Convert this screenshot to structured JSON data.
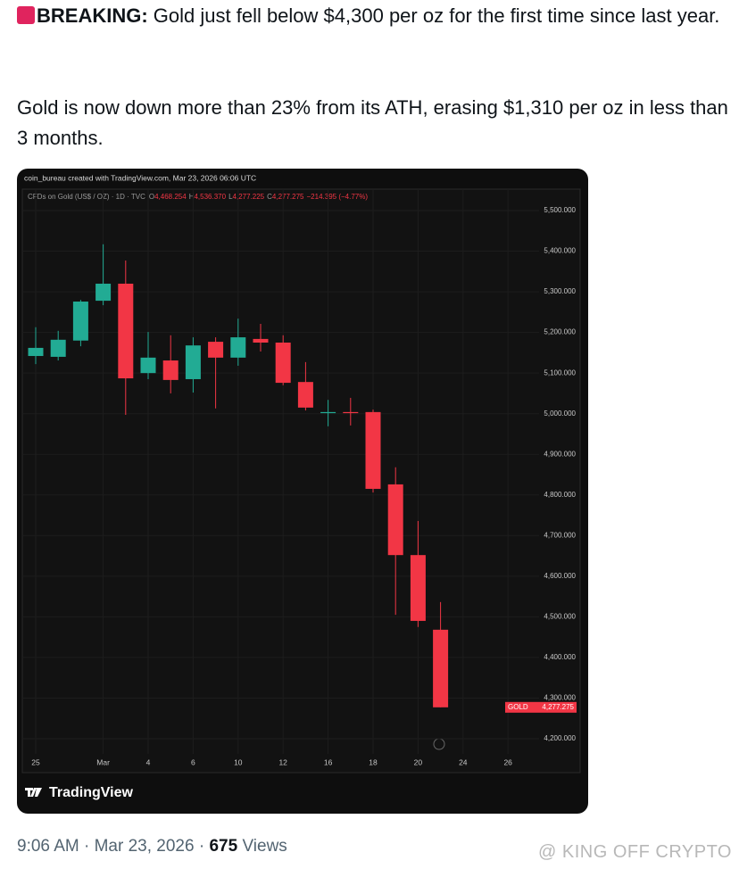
{
  "tweet": {
    "lead": "BREAKING:",
    "line1": " Gold just fell below $4,300 per oz for the first time since last year.",
    "line2": "Gold is now down more than 23% from its ATH, erasing $1,310 per oz in less than 3 months."
  },
  "chart_data": {
    "type": "candlestick",
    "attribution": "coin_bureau created with TradingView.com, Mar 23, 2026 06:06 UTC",
    "title": "CFDs on Gold (US$ / OZ) · 1D · TVC",
    "ohlc_header": [
      {
        "label": "O",
        "value": "4,468.254"
      },
      {
        "label": "H",
        "value": "4,536.370"
      },
      {
        "label": "L",
        "value": "4,277.225"
      },
      {
        "label": "C",
        "value": "4,277.275"
      }
    ],
    "change": "−214.395 (−4.77%)",
    "categories": [
      "25",
      null,
      null,
      "Mar",
      null,
      "4",
      null,
      "6",
      null,
      "10",
      null,
      "12",
      null,
      "16",
      null,
      "18",
      null,
      "20",
      null,
      "24",
      null,
      "26"
    ],
    "open": [
      5142,
      5140,
      5180,
      5278,
      5320,
      5100,
      5131,
      5085,
      5177,
      5138,
      5184,
      5175,
      5078,
      5002,
      5004,
      5004,
      4826,
      4652,
      4468.254,
      null,
      null,
      null
    ],
    "high": [
      5213,
      5204,
      5280,
      5417,
      5377,
      5201,
      5193,
      5188,
      5188,
      5234,
      5221,
      5193,
      5127,
      5034,
      5039,
      5010,
      4868,
      4736,
      4536.37,
      null,
      null,
      null
    ],
    "low": [
      5122,
      5131,
      5166,
      5267,
      4997,
      5085,
      5050,
      5052,
      5013,
      5118,
      5153,
      5070,
      5008,
      4969,
      4971,
      4806,
      4505,
      4475,
      4277.225,
      null,
      null,
      null
    ],
    "close": [
      5162,
      5182,
      5276,
      5320,
      5087,
      5138,
      5083,
      5168,
      5138,
      5188,
      5175,
      5076,
      5015,
      5004,
      5002,
      4815,
      4652,
      4490,
      4277.275,
      null,
      null,
      null
    ],
    "up_color": "#22ab94",
    "down_color": "#f23645",
    "ylim": [
      4200,
      5500
    ],
    "yticks": [
      {
        "value": 4200,
        "label": "4,200.000"
      },
      {
        "value": 4300,
        "label": "4,300.000"
      },
      {
        "value": 4400,
        "label": "4,400.000"
      },
      {
        "value": 4500,
        "label": "4,500.000"
      },
      {
        "value": 4600,
        "label": "4,600.000"
      },
      {
        "value": 4700,
        "label": "4,700.000"
      },
      {
        "value": 4800,
        "label": "4,800.000"
      },
      {
        "value": 4900,
        "label": "4,900.000"
      },
      {
        "value": 5000,
        "label": "5,000.000"
      },
      {
        "value": 5100,
        "label": "5,100.000"
      },
      {
        "value": 5200,
        "label": "5,200.000"
      },
      {
        "value": 5300,
        "label": "5,300.000"
      },
      {
        "value": 5400,
        "label": "5,400.000"
      },
      {
        "value": 5500,
        "label": "5,500.000"
      }
    ],
    "grid": true,
    "price_label": {
      "symbol": "GOLD",
      "value": "4,277.275"
    },
    "brand": "TradingView"
  },
  "footer": {
    "time": "9:06 AM",
    "separator": "·",
    "date": "Mar 23, 2026",
    "views": "675",
    "views_label": "Views"
  },
  "watermark": "@ KING OFF CRYPTO"
}
